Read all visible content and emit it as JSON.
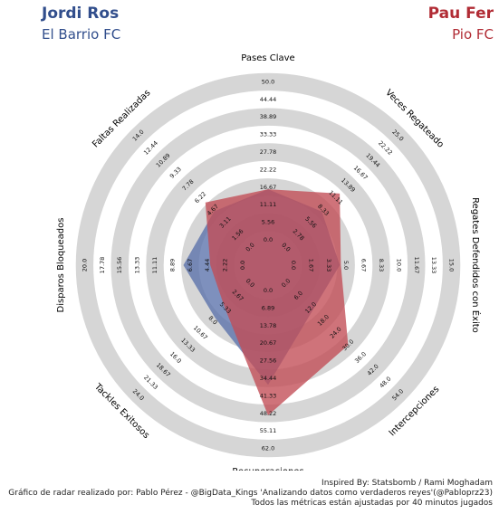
{
  "players": {
    "left": {
      "name": "Jordi Ros",
      "team": "El Barrio FC",
      "color": "#314e8c"
    },
    "right": {
      "name": "Pau Fer",
      "team": "Pio FC",
      "color": "#b12c35"
    }
  },
  "colors": {
    "ring": "#d6d6d6",
    "left_fill": "#5a71aa",
    "right_fill": "#c24c54"
  },
  "footer": {
    "line1": "Inspired By: Statsbomb / Rami Moghadam",
    "line2": "Gráfico de radar realizado por: Pablo Pérez - @BigData_Kings 'Analizando datos como verdaderos reyes'(@Pabloprz23)",
    "line3": "Todos las métricas están ajustadas por 40 minutos jugados"
  },
  "chart_data": {
    "type": "radar",
    "axes": [
      {
        "label": "Pases Clave",
        "ticks": [
          "0.0",
          "5.56",
          "11.11",
          "16.67",
          "22.22",
          "27.78",
          "33.33",
          "38.89",
          "44.44",
          "50.0"
        ]
      },
      {
        "label": "Veces Regateado",
        "ticks": [
          "0.0",
          "2.78",
          "5.56",
          "8.33",
          "11.11",
          "13.89",
          "16.67",
          "19.44",
          "22.22",
          "25.0"
        ]
      },
      {
        "label": "Regates Defendidos con Éxito",
        "ticks": [
          "0.0",
          "1.67",
          "3.33",
          "5.0",
          "6.67",
          "8.33",
          "10.0",
          "11.67",
          "13.33",
          "15.0"
        ]
      },
      {
        "label": "Intercepciones",
        "ticks": [
          "0.0",
          "6.0",
          "12.0",
          "18.0",
          "24.0",
          "30.0",
          "36.0",
          "42.0",
          "48.0",
          "54.0"
        ]
      },
      {
        "label": "Recuperaciones",
        "ticks": [
          "0.0",
          "6.89",
          "13.78",
          "20.67",
          "27.56",
          "34.44",
          "41.33",
          "48.22",
          "55.11",
          "62.0"
        ]
      },
      {
        "label": "Tackles Exitosos",
        "ticks": [
          "0.0",
          "2.67",
          "5.33",
          "8.0",
          "10.67",
          "13.33",
          "16.0",
          "18.67",
          "21.33",
          "24.0"
        ]
      },
      {
        "label": "Disparos Bloqueados",
        "ticks": [
          "0.0",
          "2.22",
          "4.44",
          "6.67",
          "8.89",
          "11.11",
          "13.33",
          "15.56",
          "17.78",
          "20.0"
        ]
      },
      {
        "label": "Faltas Realizadas",
        "ticks": [
          "0.0",
          "1.56",
          "3.11",
          "4.67",
          "6.22",
          "7.78",
          "9.33",
          "10.89",
          "12.44",
          "14.0"
        ]
      }
    ],
    "ranges": [
      [
        0,
        50
      ],
      [
        0,
        25
      ],
      [
        0,
        15
      ],
      [
        0,
        54
      ],
      [
        0,
        62
      ],
      [
        0,
        24
      ],
      [
        0,
        20
      ],
      [
        0,
        14
      ]
    ],
    "series": [
      {
        "name": "Jordi Ros",
        "values": [
          16,
          8,
          4.4,
          13,
          37,
          7.5,
          7.5,
          4.5
        ]
      },
      {
        "name": "Pau Fer",
        "values": [
          16,
          12,
          4.5,
          30,
          49,
          5.4,
          4.1,
          5.6
        ]
      }
    ]
  }
}
